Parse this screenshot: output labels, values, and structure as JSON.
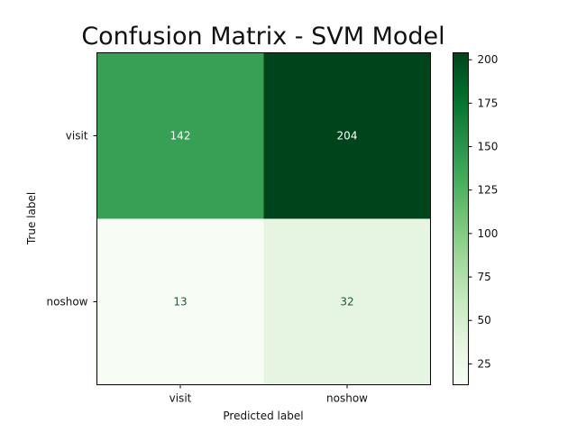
{
  "chart_data": {
    "type": "heatmap",
    "title": "Confusion Matrix - SVM Model",
    "xlabel": "Predicted label",
    "ylabel": "True label",
    "x_categories": [
      "visit",
      "noshow"
    ],
    "y_categories": [
      "visit",
      "noshow"
    ],
    "values": [
      [
        142,
        204
      ],
      [
        13,
        32
      ]
    ],
    "colormap": "Greens",
    "value_range": [
      13,
      204
    ],
    "colorbar_ticks": [
      25,
      50,
      75,
      100,
      125,
      150,
      175,
      200
    ],
    "cell_colors": [
      [
        "#37a055",
        "#00441b"
      ],
      [
        "#f7fcf5",
        "#e6f5e1"
      ]
    ],
    "text_colors": [
      [
        "#ffffff",
        "#ffffff"
      ],
      [
        "#1e5b32",
        "#1e5b32"
      ]
    ],
    "colorbar_stops": [
      "#f7fcf5",
      "#e5f5e0",
      "#c7e9c0",
      "#a1d99b",
      "#74c476",
      "#41ab5d",
      "#238b45",
      "#006d2c",
      "#00441b"
    ]
  }
}
